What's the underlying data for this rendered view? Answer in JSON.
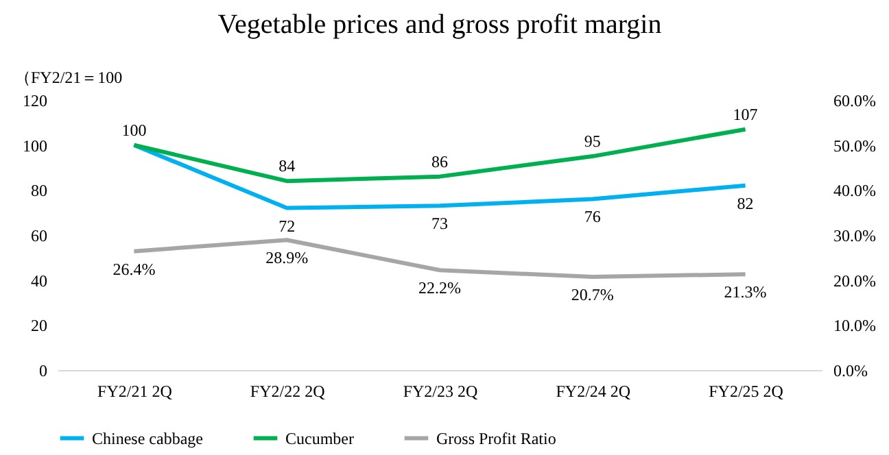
{
  "chart_data": {
    "type": "line",
    "title": "Vegetable prices and gross profit margin",
    "ylabel": "（FY2/21＝100",
    "categories": [
      "FY2/21 2Q",
      "FY2/22 2Q",
      "FY2/23 2Q",
      "FY2/24 2Q",
      "FY2/25 2Q"
    ],
    "series": [
      {
        "name": "Chinese cabbage",
        "color": "#00b0f0",
        "values": [
          100,
          72,
          73,
          76,
          82
        ],
        "value_labels": [
          null,
          "72",
          "73",
          "76",
          "82"
        ]
      },
      {
        "name": "Cucumber",
        "color": "#00b050",
        "values": [
          100,
          84,
          86,
          95,
          107
        ],
        "value_labels": [
          "100",
          "84",
          "86",
          "95",
          "107"
        ]
      },
      {
        "name": "Gross Profit Ratio",
        "color": "#a6a6a6",
        "axis": "y2",
        "values": [
          26.4,
          28.9,
          22.2,
          20.7,
          21.3
        ],
        "value_labels": [
          "26.4%",
          "28.9%",
          "22.2%",
          "20.7%",
          "21.3%"
        ]
      }
    ],
    "ylim": [
      0,
      120
    ],
    "yticks": [
      0,
      20,
      40,
      60,
      80,
      100,
      120
    ],
    "y2lim": [
      0,
      60
    ],
    "y2ticks": [
      {
        "value": 0,
        "label": "0.0%"
      },
      {
        "value": 10,
        "label": "10.0%"
      },
      {
        "value": 20,
        "label": "20.0%"
      },
      {
        "value": 30,
        "label": "30.0%"
      },
      {
        "value": 40,
        "label": "40.0%"
      },
      {
        "value": 50,
        "label": "50.0%"
      },
      {
        "value": 60,
        "label": "60.0%"
      }
    ],
    "legend": "bottom",
    "grid": false,
    "marker": "none",
    "line_style": "solid"
  }
}
